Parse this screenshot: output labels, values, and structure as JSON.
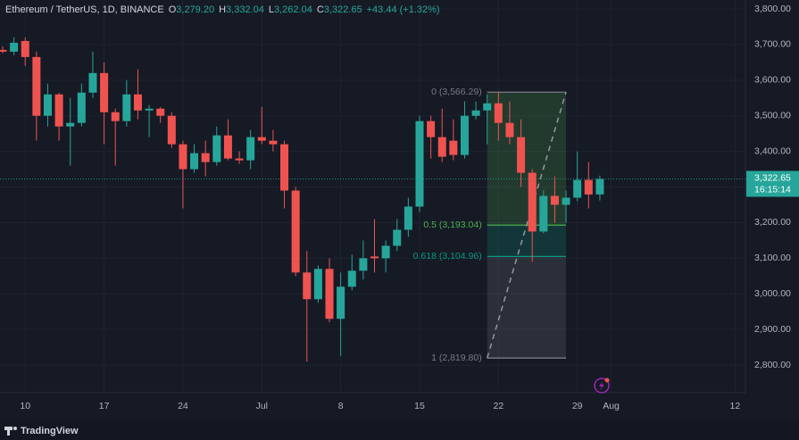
{
  "chart_data": {
    "type": "candlestick",
    "header": {
      "symbol": "Ethereum / TetherUS, 1D, BINANCE",
      "fields": [
        {
          "key": "O",
          "text": "3,279.20"
        },
        {
          "key": "H",
          "text": "3,332.04"
        },
        {
          "key": "L",
          "text": "3,262.04"
        },
        {
          "key": "C",
          "text": "3,322.65"
        }
      ],
      "change": "+43.44 (+1.32%)"
    },
    "brand": "TradingView",
    "up_color": "#26a69a",
    "down_color": "#ef5350",
    "x": [
      "Jun 8",
      "Jun 9",
      "Jun 10",
      "Jun 11",
      "Jun 12",
      "Jun 13",
      "Jun 14",
      "Jun 15",
      "Jun 16",
      "Jun 17",
      "Jun 18",
      "Jun 19",
      "Jun 20",
      "Jun 21",
      "Jun 22",
      "Jun 23",
      "Jun 24",
      "Jun 25",
      "Jun 26",
      "Jun 27",
      "Jun 28",
      "Jun 29",
      "Jun 30",
      "Jul 1",
      "Jul 2",
      "Jul 3",
      "Jul 4",
      "Jul 5",
      "Jul 6",
      "Jul 7",
      "Jul 8",
      "Jul 9",
      "Jul 10",
      "Jul 11",
      "Jul 12",
      "Jul 13",
      "Jul 14",
      "Jul 15",
      "Jul 16",
      "Jul 17",
      "Jul 18",
      "Jul 19",
      "Jul 20",
      "Jul 21",
      "Jul 22",
      "Jul 23",
      "Jul 24",
      "Jul 25",
      "Jul 26",
      "Jul 27",
      "Jul 28",
      "Jul 29",
      "Jul 30",
      "Jul 31"
    ],
    "open": [
      3685,
      3680,
      3710,
      3665,
      3500,
      3560,
      3470,
      3480,
      3565,
      3620,
      3510,
      3485,
      3560,
      3515,
      3520,
      3500,
      3420,
      3350,
      3395,
      3370,
      3445,
      3380,
      3375,
      3440,
      3430,
      3420,
      3290,
      3060,
      2985,
      3070,
      2930,
      3020,
      3065,
      3105,
      3100,
      3135,
      3180,
      3245,
      3485,
      3440,
      3430,
      3390,
      3500,
      3515,
      3535,
      3480,
      3440,
      3340,
      3175,
      3275,
      3250,
      3270,
      3320,
      3279.2
    ],
    "high": [
      3695,
      3720,
      3720,
      3680,
      3590,
      3565,
      3550,
      3590,
      3680,
      3650,
      3520,
      3600,
      3630,
      3530,
      3525,
      3510,
      3430,
      3420,
      3430,
      3470,
      3490,
      3400,
      3460,
      3525,
      3460,
      3430,
      3300,
      3120,
      3080,
      3100,
      3060,
      3110,
      3150,
      3210,
      3150,
      3210,
      3270,
      3500,
      3500,
      3520,
      3490,
      3540,
      3540,
      3560,
      3566.29,
      3540,
      3490,
      3350,
      3290,
      3330,
      3290,
      3400,
      3370,
      3332.04
    ],
    "low": [
      3675,
      3670,
      3640,
      3430,
      3470,
      3430,
      3360,
      3470,
      3550,
      3420,
      3360,
      3470,
      3490,
      3440,
      3480,
      3410,
      3240,
      3340,
      3330,
      3360,
      3375,
      3365,
      3350,
      3420,
      3400,
      3240,
      3050,
      2810,
      2975,
      2920,
      2825,
      3010,
      3040,
      3060,
      3060,
      3120,
      3160,
      3230,
      3380,
      3370,
      3375,
      3380,
      3490,
      3420,
      3430,
      3420,
      3300,
      3090,
      3170,
      3200,
      3200,
      3260,
      3240,
      3262.04
    ],
    "close": [
      3680,
      3705,
      3665,
      3500,
      3560,
      3470,
      3480,
      3565,
      3620,
      3510,
      3485,
      3560,
      3515,
      3520,
      3500,
      3420,
      3350,
      3395,
      3370,
      3445,
      3380,
      3375,
      3440,
      3430,
      3420,
      3290,
      3060,
      2985,
      3070,
      2930,
      3020,
      3065,
      3100,
      3100,
      3135,
      3180,
      3245,
      3485,
      3440,
      3385,
      3390,
      3500,
      3515,
      3535,
      3480,
      3440,
      3340,
      3175,
      3275,
      3250,
      3270,
      3320,
      3279,
      3322.65
    ],
    "xlim": [
      "Jun 8",
      "Aug 13"
    ],
    "xticks": [
      {
        "value": "Jun 10",
        "label": "10"
      },
      {
        "value": "Jun 17",
        "label": "17"
      },
      {
        "value": "Jun 24",
        "label": "24"
      },
      {
        "value": "Jul 1",
        "label": "Jul"
      },
      {
        "value": "Jul 8",
        "label": "8"
      },
      {
        "value": "Jul 15",
        "label": "15"
      },
      {
        "value": "Jul 22",
        "label": "22"
      },
      {
        "value": "Jul 29",
        "label": "29"
      },
      {
        "value": "Aug 1",
        "label": "Aug"
      },
      {
        "value": "Aug 12",
        "label": "12"
      }
    ],
    "ylim": [
      2720,
      3800
    ],
    "yticks": [
      {
        "value": 2800,
        "label": "2,800.00"
      },
      {
        "value": 2900,
        "label": "2,900.00"
      },
      {
        "value": 3000,
        "label": "3,000.00"
      },
      {
        "value": 3100,
        "label": "3,100.00"
      },
      {
        "value": 3200,
        "label": "3,200.00"
      },
      {
        "value": 3300,
        "label": "3,300.00"
      },
      {
        "value": 3400,
        "label": "3,400.00"
      },
      {
        "value": 3500,
        "label": "3,500.00"
      },
      {
        "value": 3600,
        "label": "3,600.00"
      },
      {
        "value": 3700,
        "label": "3,700.00"
      },
      {
        "value": 3800,
        "label": "3,800.00"
      }
    ],
    "grid": true,
    "last": {
      "value": 3322.65,
      "label": "3,322.65",
      "countdown": "16:15:14",
      "color": "#26a69a"
    },
    "fib": {
      "from": "Jul 21",
      "to": "Jul 28",
      "levels": [
        {
          "value": 3566.29,
          "label": "0 (3,566.29)",
          "color": "#787b86",
          "fill": "rgba(76,175,80,0.22)"
        },
        {
          "value": 3193.04,
          "label": "0.5 (3,193.04)",
          "color": "#4caf50",
          "fill": "rgba(8,153,129,0.22)"
        },
        {
          "value": 3104.96,
          "label": "0.618 (3,104.96)",
          "color": "#089981",
          "fill": "rgba(120,123,134,0.22)"
        },
        {
          "value": 2819.8,
          "label": "1 (2,819.80)",
          "color": "#787b86"
        }
      ]
    }
  }
}
